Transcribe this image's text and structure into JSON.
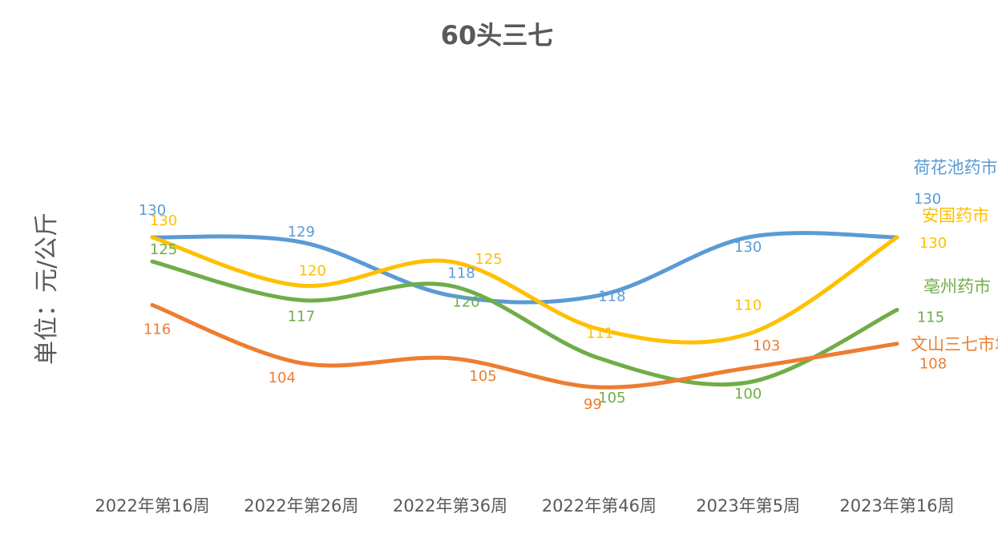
{
  "chart_data": {
    "type": "line",
    "title": "60头三七",
    "xlabel": "",
    "ylabel": "单位：元/公斤",
    "categories": [
      "2022年第16周",
      "2022年第26周",
      "2022年第36周",
      "2022年第46周",
      "2023年第5周",
      "2023年第16周"
    ],
    "ylim": [
      80,
      150
    ],
    "grid": false,
    "legend": "inline-right",
    "series": [
      {
        "name": "荷花池药市",
        "color": "#5B9BD5",
        "values": [
          130,
          129,
          118,
          118,
          130,
          130
        ]
      },
      {
        "name": "安国药市",
        "color": "#FFC000",
        "values": [
          130,
          120,
          125,
          111,
          110,
          130
        ]
      },
      {
        "name": "亳州药市",
        "color": "#70AD47",
        "values": [
          125,
          117,
          120,
          105,
          100,
          115
        ]
      },
      {
        "name": "文山三七市场",
        "color": "#ED7D31",
        "values": [
          116,
          104,
          105,
          99,
          103,
          108
        ]
      }
    ]
  }
}
